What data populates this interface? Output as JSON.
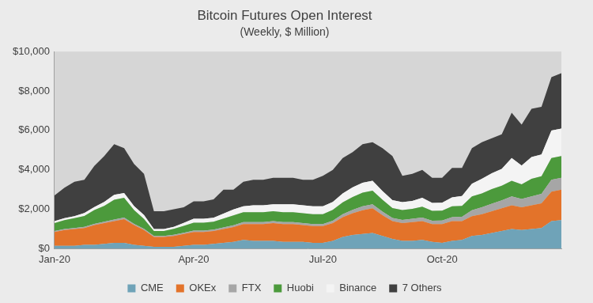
{
  "chart_data": {
    "type": "area",
    "title": "Bitcoin Futures Open Interest",
    "subtitle": "(Weekly, $ Million)",
    "stacked": true,
    "grid": false,
    "legend": "bottom",
    "categories": [
      "Jan-20",
      null,
      null,
      null,
      null,
      null,
      null,
      null,
      null,
      null,
      null,
      null,
      null,
      null,
      "Apr-20",
      null,
      null,
      null,
      null,
      null,
      null,
      null,
      null,
      null,
      null,
      null,
      null,
      "Jul-20",
      null,
      null,
      null,
      null,
      null,
      null,
      null,
      null,
      null,
      null,
      null,
      "Oct-20",
      null,
      null,
      null,
      null,
      null,
      null,
      null,
      null,
      null,
      null,
      null,
      null
    ],
    "ylim": [
      0,
      10000
    ],
    "yticks": [
      {
        "value": 0,
        "label": "$0"
      },
      {
        "value": 2000,
        "label": "$2,000"
      },
      {
        "value": 4000,
        "label": "$4,000"
      },
      {
        "value": 6000,
        "label": "$6,000"
      },
      {
        "value": 8000,
        "label": "$8,000"
      },
      {
        "value": 10000,
        "label": "$10,000"
      }
    ],
    "series": [
      {
        "name": "CME",
        "color": "#6fa3b8",
        "values": [
          150,
          150,
          150,
          200,
          200,
          250,
          300,
          300,
          200,
          150,
          100,
          100,
          100,
          150,
          200,
          200,
          250,
          300,
          350,
          450,
          400,
          400,
          400,
          350,
          350,
          350,
          300,
          300,
          400,
          600,
          700,
          750,
          800,
          650,
          500,
          400,
          400,
          450,
          350,
          300,
          400,
          450,
          650,
          700,
          800,
          900,
          1000,
          950,
          1000,
          1050,
          1400,
          1450
        ]
      },
      {
        "name": "OKEx",
        "color": "#e3732a",
        "values": [
          700,
          800,
          850,
          850,
          1000,
          1050,
          1100,
          1200,
          1000,
          800,
          500,
          500,
          550,
          600,
          650,
          650,
          650,
          700,
          750,
          800,
          850,
          850,
          900,
          900,
          900,
          850,
          850,
          850,
          900,
          1000,
          1100,
          1200,
          1250,
          1050,
          900,
          900,
          950,
          950,
          900,
          950,
          1000,
          950,
          1000,
          1050,
          1100,
          1150,
          1200,
          1150,
          1200,
          1250,
          1500,
          1550
        ]
      },
      {
        "name": "FTX",
        "color": "#a6a6a6",
        "values": [
          50,
          50,
          50,
          60,
          60,
          70,
          80,
          80,
          60,
          60,
          50,
          50,
          60,
          60,
          70,
          70,
          70,
          80,
          90,
          100,
          100,
          100,
          100,
          100,
          100,
          100,
          100,
          100,
          120,
          150,
          170,
          200,
          200,
          180,
          160,
          160,
          170,
          180,
          170,
          180,
          200,
          220,
          300,
          350,
          380,
          400,
          450,
          420,
          450,
          480,
          600,
          600
        ]
      },
      {
        "name": "Huobi",
        "color": "#4c9a3c",
        "values": [
          400,
          450,
          500,
          550,
          700,
          800,
          1000,
          1000,
          700,
          500,
          250,
          250,
          300,
          350,
          400,
          400,
          400,
          450,
          500,
          500,
          500,
          500,
          500,
          500,
          500,
          500,
          500,
          500,
          550,
          600,
          650,
          700,
          700,
          600,
          500,
          500,
          500,
          550,
          500,
          500,
          550,
          550,
          700,
          700,
          750,
          750,
          800,
          750,
          900,
          900,
          1100,
          1100
        ]
      },
      {
        "name": "Binance",
        "color": "#f4f4f4",
        "values": [
          100,
          100,
          100,
          150,
          150,
          200,
          250,
          250,
          200,
          200,
          100,
          100,
          100,
          150,
          200,
          200,
          200,
          250,
          300,
          300,
          350,
          350,
          350,
          400,
          400,
          400,
          400,
          400,
          400,
          450,
          500,
          500,
          500,
          450,
          400,
          400,
          400,
          450,
          400,
          400,
          450,
          500,
          650,
          750,
          800,
          850,
          1150,
          950,
          1100,
          1100,
          1400,
          1400
        ]
      },
      {
        "name": "7 Others",
        "color": "#404040",
        "values": [
          1300,
          1550,
          1750,
          1690,
          2090,
          2330,
          2570,
          2270,
          2140,
          2090,
          900,
          900,
          890,
          790,
          880,
          880,
          930,
          1220,
          1010,
          1250,
          1300,
          1300,
          1350,
          1350,
          1350,
          1300,
          1350,
          1550,
          1630,
          1800,
          1780,
          1950,
          1950,
          2170,
          2240,
          1340,
          1380,
          1420,
          1280,
          1270,
          1500,
          1430,
          1800,
          1850,
          1770,
          1750,
          2300,
          2080,
          2450,
          2420,
          2700,
          2800
        ]
      }
    ]
  }
}
